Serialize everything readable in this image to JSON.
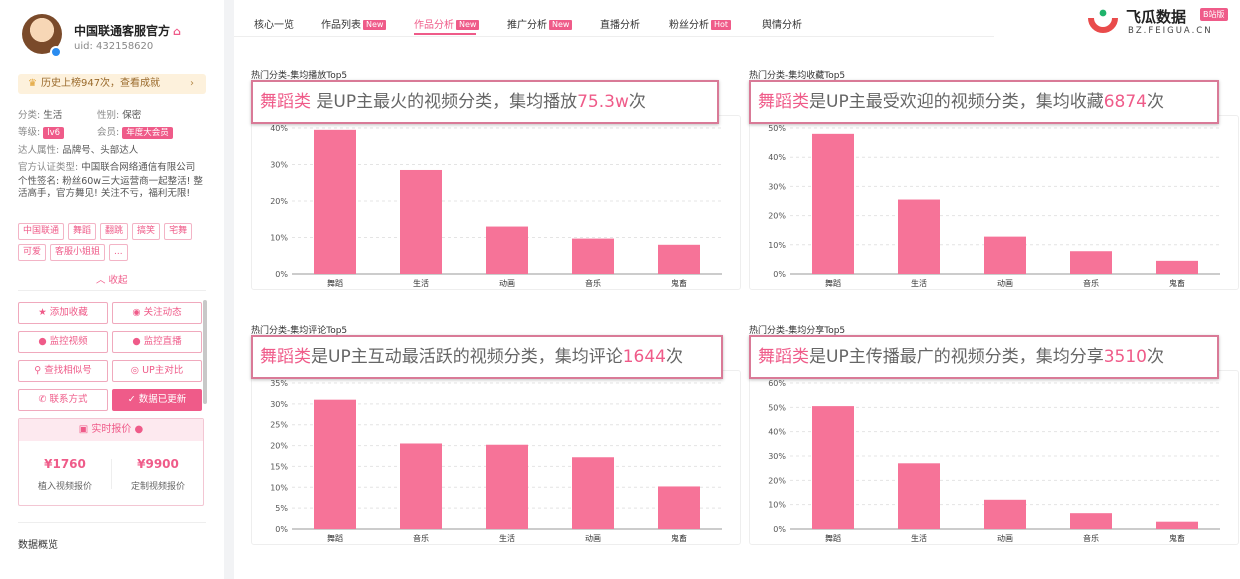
{
  "profile": {
    "name": "中国联通客服官方",
    "uid": "uid: 432158620",
    "history": "历史上榜947次，查看成就",
    "category_label": "分类:",
    "category": "生活",
    "gender_label": "性别:",
    "gender": "保密",
    "level_label": "等级:",
    "level": "lv6",
    "member_label": "会员:",
    "member": "年度大会员",
    "attr_label": "达人属性:",
    "attr": "品牌号、头部达人",
    "cert_label": "官方认证类型:",
    "cert": "中国联合网络通信有限公司",
    "signature": "个性签名: 粉丝60w三大运营商一起整活! 整活高手，官方舞见! 关注不亏，福利无限!",
    "tags": [
      "中国联通",
      "舞蹈",
      "翻跳",
      "搞笑",
      "宅舞",
      "可爱",
      "客服小姐姐",
      "..."
    ],
    "collapse": "收起"
  },
  "actions": {
    "fav": "添加收藏",
    "follow": "关注动态",
    "monitor_video": "监控视频",
    "monitor_live": "监控直播",
    "find_similar": "查找相似号",
    "compare": "UP主对比",
    "contact": "联系方式",
    "updated": "数据已更新"
  },
  "pricing": {
    "title": "实时报价",
    "implant_value": "¥1760",
    "implant_label": "植入视频报价",
    "custom_value": "¥9900",
    "custom_label": "定制视频报价"
  },
  "overview": "数据概览",
  "nav": {
    "tabs": [
      "核心一览",
      "作品列表",
      "作品分析",
      "推广分析",
      "直播分析",
      "粉丝分析",
      "舆情分析"
    ],
    "badges": [
      "",
      "New",
      "New",
      "New",
      "",
      "Hot",
      ""
    ],
    "active": 2
  },
  "logo": {
    "name": "飞瓜数据",
    "version": "B站版",
    "url": "BZ.FEIGUA.CN"
  },
  "colors": {
    "accent": "#ef5b89",
    "bar": "#f67398"
  },
  "panels": [
    {
      "title": "热门分类-集均播放Top5",
      "callout_hl": "舞蹈类",
      "callout_text": " 是UP主最火的视频分类，集均播放",
      "callout_value": "75.3w",
      "callout_suffix": "次"
    },
    {
      "title": "热门分类-集均收藏Top5",
      "callout_hl": "舞蹈类",
      "callout_text": "是UP主最受欢迎的视频分类，集均收藏",
      "callout_value": "6874",
      "callout_suffix": "次"
    },
    {
      "title": "热门分类-集均评论Top5",
      "callout_hl": "舞蹈类",
      "callout_text": "是UP主互动最活跃的视频分类，集均评论",
      "callout_value": "1644",
      "callout_suffix": "次"
    },
    {
      "title": "热门分类-集均分享Top5",
      "callout_hl": "舞蹈类",
      "callout_text": "是UP主传播最广的视频分类，集均分享",
      "callout_value": "3510",
      "callout_suffix": "次"
    }
  ],
  "chart_data": [
    {
      "type": "bar",
      "categories": [
        "舞蹈",
        "生活",
        "动画",
        "音乐",
        "鬼畜"
      ],
      "values": [
        39.5,
        28.5,
        13,
        9.7,
        8
      ],
      "ylim": [
        0,
        40
      ],
      "yticks": [
        "0%",
        "10%",
        "20%",
        "30%",
        "40%"
      ],
      "grid": true
    },
    {
      "type": "bar",
      "categories": [
        "舞蹈",
        "生活",
        "动画",
        "音乐",
        "鬼畜"
      ],
      "values": [
        48,
        25.5,
        12.8,
        7.8,
        4.5
      ],
      "ylim": [
        0,
        50
      ],
      "yticks": [
        "0%",
        "10%",
        "20%",
        "30%",
        "40%",
        "50%"
      ],
      "grid": true
    },
    {
      "type": "bar",
      "categories": [
        "舞蹈",
        "音乐",
        "生活",
        "动画",
        "鬼畜"
      ],
      "values": [
        31,
        20.5,
        20.2,
        17.2,
        10.2
      ],
      "ylim": [
        0,
        35
      ],
      "yticks": [
        "0%",
        "5%",
        "10%",
        "15%",
        "20%",
        "25%",
        "30%",
        "35%"
      ],
      "grid": true
    },
    {
      "type": "bar",
      "categories": [
        "舞蹈",
        "生活",
        "动画",
        "音乐",
        "鬼畜"
      ],
      "values": [
        50.5,
        27,
        12,
        6.5,
        3
      ],
      "ylim": [
        0,
        60
      ],
      "yticks": [
        "0%",
        "10%",
        "20%",
        "30%",
        "40%",
        "50%",
        "60%"
      ],
      "grid": true
    }
  ]
}
